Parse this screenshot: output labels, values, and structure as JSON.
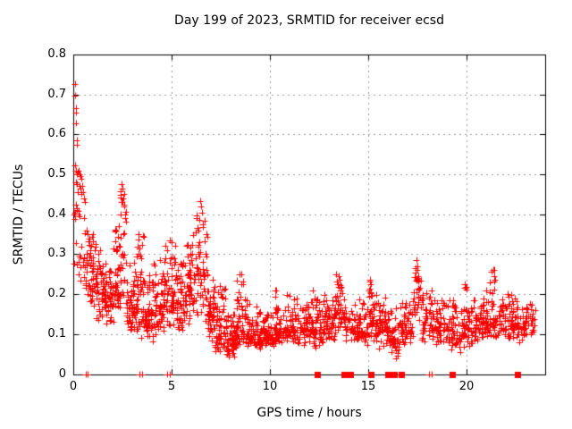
{
  "title": "Day 199 of 2023, SRMTID for receiver ecsd",
  "chart_data": {
    "type": "scatter",
    "title": "Day 199 of 2023, SRMTID for receiver ecsd",
    "xlabel": "GPS time / hours",
    "ylabel": "SRMTID / TECUs",
    "xlim": [
      0,
      24
    ],
    "ylim": [
      0,
      0.8
    ],
    "x_ticks": [
      0,
      5,
      10,
      15,
      20
    ],
    "y_ticks": [
      0,
      0.1,
      0.2,
      0.3,
      0.4,
      0.5,
      0.6,
      0.7,
      0.8
    ],
    "grid": true,
    "legend": "none",
    "marker": "plus",
    "marker_color": "#ff0000",
    "grid_color": "#9c9c9c",
    "border_color": "#000000",
    "seed": 199,
    "density_bins_comment": "each bin = [hour_start, hour_end, n_points, y_min, y_mode, y_max] summarizing the dense red point cloud",
    "density_bins": [
      [
        0.0,
        0.6,
        22,
        0.23,
        0.3,
        0.44
      ],
      [
        0.6,
        1.0,
        40,
        0.15,
        0.25,
        0.37
      ],
      [
        1.0,
        1.5,
        50,
        0.13,
        0.21,
        0.33
      ],
      [
        1.5,
        2.0,
        50,
        0.12,
        0.2,
        0.3
      ],
      [
        2.0,
        2.4,
        45,
        0.13,
        0.22,
        0.38
      ],
      [
        2.4,
        2.7,
        28,
        0.15,
        0.28,
        0.48
      ],
      [
        2.7,
        3.2,
        50,
        0.1,
        0.17,
        0.28
      ],
      [
        3.2,
        3.6,
        45,
        0.09,
        0.15,
        0.35
      ],
      [
        3.6,
        4.1,
        50,
        0.08,
        0.14,
        0.25
      ],
      [
        4.1,
        4.6,
        50,
        0.1,
        0.17,
        0.3
      ],
      [
        4.6,
        5.2,
        55,
        0.1,
        0.19,
        0.33
      ],
      [
        5.2,
        5.7,
        50,
        0.1,
        0.18,
        0.3
      ],
      [
        5.7,
        6.2,
        50,
        0.12,
        0.22,
        0.35
      ],
      [
        6.2,
        6.8,
        55,
        0.12,
        0.25,
        0.44
      ],
      [
        6.8,
        7.2,
        45,
        0.08,
        0.15,
        0.25
      ],
      [
        7.2,
        7.8,
        60,
        0.05,
        0.1,
        0.22
      ],
      [
        7.8,
        8.3,
        60,
        0.04,
        0.08,
        0.15
      ],
      [
        8.3,
        8.8,
        55,
        0.06,
        0.1,
        0.25
      ],
      [
        8.8,
        9.5,
        60,
        0.06,
        0.1,
        0.18
      ],
      [
        9.5,
        10.2,
        60,
        0.06,
        0.09,
        0.16
      ],
      [
        10.2,
        10.8,
        55,
        0.07,
        0.11,
        0.21
      ],
      [
        10.8,
        11.5,
        55,
        0.07,
        0.11,
        0.2
      ],
      [
        11.5,
        12.2,
        55,
        0.07,
        0.12,
        0.2
      ],
      [
        12.2,
        12.8,
        50,
        0.06,
        0.11,
        0.21
      ],
      [
        12.8,
        13.3,
        45,
        0.08,
        0.13,
        0.19
      ],
      [
        13.3,
        13.8,
        40,
        0.1,
        0.16,
        0.25
      ],
      [
        13.8,
        14.3,
        30,
        0.08,
        0.12,
        0.18
      ],
      [
        14.3,
        15.0,
        55,
        0.07,
        0.11,
        0.19
      ],
      [
        15.0,
        15.5,
        45,
        0.08,
        0.13,
        0.235
      ],
      [
        15.5,
        16.1,
        50,
        0.06,
        0.11,
        0.2
      ],
      [
        16.1,
        16.6,
        40,
        0.03,
        0.09,
        0.17
      ],
      [
        16.6,
        17.3,
        55,
        0.06,
        0.11,
        0.19
      ],
      [
        17.3,
        17.7,
        28,
        0.12,
        0.18,
        0.29
      ],
      [
        17.7,
        18.4,
        50,
        0.08,
        0.13,
        0.22
      ],
      [
        18.4,
        19.2,
        55,
        0.07,
        0.12,
        0.2
      ],
      [
        19.2,
        19.8,
        45,
        0.05,
        0.11,
        0.2
      ],
      [
        19.8,
        20.3,
        45,
        0.05,
        0.12,
        0.225
      ],
      [
        20.3,
        21.0,
        55,
        0.08,
        0.12,
        0.19
      ],
      [
        21.0,
        21.6,
        45,
        0.09,
        0.14,
        0.26
      ],
      [
        21.6,
        22.3,
        55,
        0.08,
        0.13,
        0.21
      ],
      [
        22.3,
        23.0,
        55,
        0.08,
        0.12,
        0.2
      ],
      [
        23.0,
        23.5,
        28,
        0.09,
        0.13,
        0.18
      ]
    ],
    "outlier_points_comment": "explicit [hour, TECU] points for the visible high spikes",
    "outlier_points": [
      [
        0.08,
        0.727
      ],
      [
        0.1,
        0.697
      ],
      [
        0.12,
        0.665
      ],
      [
        0.14,
        0.655
      ],
      [
        0.15,
        0.628
      ],
      [
        0.16,
        0.585
      ],
      [
        0.18,
        0.575
      ],
      [
        0.1,
        0.522
      ],
      [
        0.13,
        0.51
      ],
      [
        0.17,
        0.5
      ],
      [
        0.22,
        0.505
      ],
      [
        0.27,
        0.51
      ],
      [
        0.32,
        0.5
      ],
      [
        0.37,
        0.495
      ],
      [
        0.42,
        0.49
      ],
      [
        0.12,
        0.48
      ],
      [
        0.2,
        0.475
      ],
      [
        0.3,
        0.47
      ],
      [
        0.36,
        0.465
      ],
      [
        0.44,
        0.47
      ],
      [
        0.5,
        0.455
      ],
      [
        0.24,
        0.455
      ],
      [
        0.4,
        0.45
      ],
      [
        0.55,
        0.44
      ],
      [
        0.6,
        0.43
      ],
      [
        0.06,
        0.4
      ],
      [
        0.1,
        0.405
      ],
      [
        0.16,
        0.41
      ],
      [
        0.25,
        0.4
      ],
      [
        0.33,
        0.395
      ],
      [
        0.7,
        0.36
      ],
      [
        1.0,
        0.35
      ],
      [
        2.2,
        0.36
      ],
      [
        2.3,
        0.37
      ],
      [
        2.45,
        0.475
      ],
      [
        2.5,
        0.465
      ],
      [
        2.55,
        0.44
      ],
      [
        2.48,
        0.43
      ],
      [
        2.6,
        0.42
      ],
      [
        2.42,
        0.4
      ],
      [
        2.65,
        0.39
      ],
      [
        3.3,
        0.35
      ],
      [
        3.55,
        0.345
      ],
      [
        4.9,
        0.335
      ],
      [
        5.0,
        0.33
      ],
      [
        6.45,
        0.432
      ],
      [
        6.5,
        0.42
      ],
      [
        6.55,
        0.405
      ],
      [
        6.4,
        0.385
      ],
      [
        6.6,
        0.375
      ],
      [
        6.35,
        0.36
      ],
      [
        7.45,
        0.22
      ],
      [
        8.45,
        0.25
      ],
      [
        10.3,
        0.21
      ],
      [
        11.0,
        0.195
      ],
      [
        13.5,
        0.245
      ],
      [
        13.55,
        0.235
      ],
      [
        13.45,
        0.225
      ],
      [
        13.6,
        0.215
      ],
      [
        15.1,
        0.235
      ],
      [
        15.15,
        0.225
      ],
      [
        17.45,
        0.285
      ],
      [
        17.5,
        0.27
      ],
      [
        17.4,
        0.255
      ],
      [
        17.55,
        0.245
      ],
      [
        19.9,
        0.225
      ],
      [
        19.95,
        0.215
      ],
      [
        21.35,
        0.26
      ],
      [
        21.4,
        0.245
      ],
      [
        21.45,
        0.235
      ]
    ],
    "zero_line_plus_markers": [
      0.63,
      0.72,
      3.38,
      3.5,
      4.77,
      4.9,
      18.08,
      18.22
    ],
    "zero_line_square_markers": [
      12.42,
      13.75,
      14.1,
      15.15,
      16.0,
      16.3,
      16.7,
      19.25,
      22.6
    ]
  }
}
